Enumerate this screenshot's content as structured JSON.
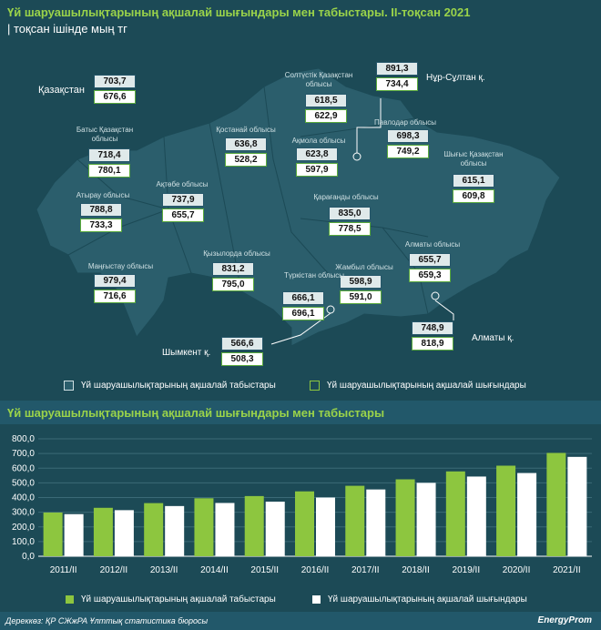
{
  "header": {
    "title": "Үй шаруашылықтарының ақшалай шығындары мен табыстары. ІІ-тоқсан 2021",
    "subtitle": "| тоқсан ішінде  мың тг"
  },
  "colors": {
    "income": "#8dc63f",
    "expense": "#ffffff",
    "background": "#1c4a56",
    "map_fill": "#2b5e6c"
  },
  "map": {
    "regions": [
      {
        "name": "Қазақстан",
        "income": "703,7",
        "expense": "676,6"
      },
      {
        "name": "Солтүстік Қазақстан облысы",
        "income": "618,5",
        "expense": "622,9"
      },
      {
        "name": "Нұр-Сұлтан қ.",
        "income": "891,3",
        "expense": "734,4"
      },
      {
        "name": "Батыс Қазақстан облысы",
        "income": "718,4",
        "expense": "780,1"
      },
      {
        "name": "Қостанай облысы",
        "income": "636,8",
        "expense": "528,2"
      },
      {
        "name": "Ақмола облысы",
        "income": "623,8",
        "expense": "597,9"
      },
      {
        "name": "Павлодар облысы",
        "income": "698,3",
        "expense": "749,2"
      },
      {
        "name": "Шығыс Қазақстан облысы",
        "income": "615,1",
        "expense": "609,8"
      },
      {
        "name": "Ақтөбе облысы",
        "income": "737,9",
        "expense": "655,7"
      },
      {
        "name": "Атырау облысы",
        "income": "788,8",
        "expense": "733,3"
      },
      {
        "name": "Қарағанды облысы",
        "income": "835,0",
        "expense": "778,5"
      },
      {
        "name": "Алматы облысы",
        "income": "655,7",
        "expense": "659,3"
      },
      {
        "name": "Маңғыстау облысы",
        "income": "979,4",
        "expense": "716,6"
      },
      {
        "name": "Қызылорда облысы",
        "income": "831,2",
        "expense": "795,0"
      },
      {
        "name": "Жамбыл облысы",
        "income": "598,9",
        "expense": "591,0"
      },
      {
        "name": "Түркістан облысы",
        "income": "666,1",
        "expense": "696,1"
      },
      {
        "name": "Алматы қ.",
        "income": "748,9",
        "expense": "818,9"
      },
      {
        "name": "Шымкент қ.",
        "income": "566,6",
        "expense": "508,3"
      }
    ],
    "legend": {
      "income": "Үй  шаруашылықтарының ақшалай табыстары",
      "expense": "Үй шаруашылықтарының ақшалай шығындары"
    }
  },
  "chart_data": {
    "type": "bar",
    "title": "Үй шаруашылықтарының ақшалай шығындары мен табыстары",
    "categories": [
      "2011/II",
      "2012/II",
      "2013/II",
      "2014/II",
      "2015/II",
      "2016/II",
      "2017/II",
      "2018/II",
      "2019/II",
      "2020/II",
      "2021/II"
    ],
    "series": [
      {
        "name": "Үй  шаруашылықтарының ақшалай табыстары",
        "values": [
          298,
          330,
          362,
          395,
          410,
          442,
          480,
          524,
          578,
          617,
          704
        ]
      },
      {
        "name": "Үй шаруашылықтарының ақшалай шығындары",
        "values": [
          287,
          314,
          342,
          363,
          372,
          400,
          455,
          500,
          543,
          567,
          677
        ]
      }
    ],
    "ylim": [
      0,
      800
    ],
    "yticks": [
      "0,0",
      "100,0",
      "200,0",
      "300,0",
      "400,0",
      "500,0",
      "600,0",
      "700,0",
      "800,0"
    ],
    "grid": true,
    "legend_position": "bottom"
  },
  "footer": {
    "source": "Дереккөз: ҚР СЖжРА Ұлттық статистика бюросы",
    "brand": "EnergyProm"
  }
}
